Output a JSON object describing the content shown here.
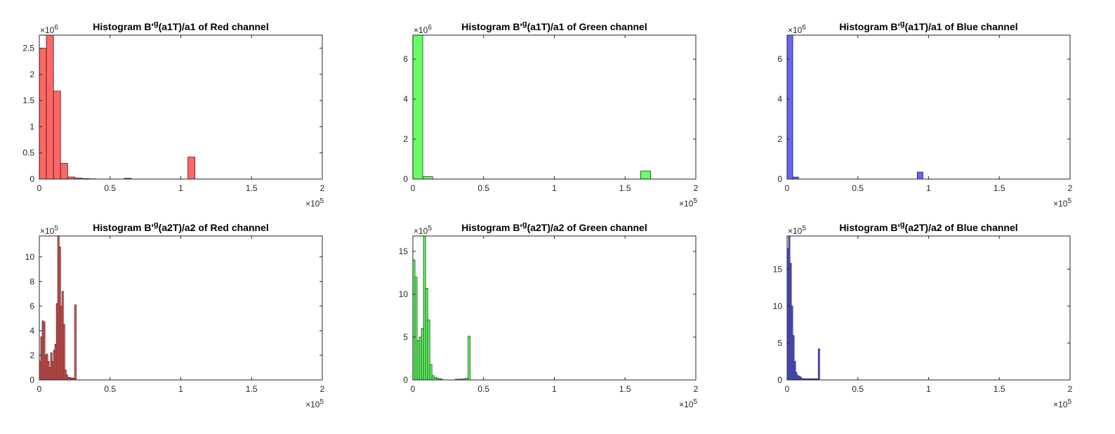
{
  "figure": {
    "background": "#ffffff"
  },
  "chart_data": [
    {
      "type": "bar",
      "title": "Histogram B'g(a1T)/a1 of Red channel",
      "title_parts": {
        "pre": "Histogram B'",
        "sup": "g",
        "post": "(a1T)/a1 of Red channel"
      },
      "color": "#ff6666",
      "xlim": [
        0,
        200000
      ],
      "ylim": [
        0,
        2750000
      ],
      "x_tick_labels": [
        "0",
        "0.5",
        "1",
        "1.5",
        "2"
      ],
      "x_ticks": [
        0,
        50000,
        100000,
        150000,
        200000
      ],
      "x_multiplier": "10^5",
      "y_tick_labels": [
        "0",
        "0.5",
        "1",
        "1.5",
        "2",
        "2.5"
      ],
      "y_ticks": [
        0,
        500000,
        1000000,
        1500000,
        2000000,
        2500000
      ],
      "y_multiplier": "10^6",
      "bin_width": 5000,
      "bins": [
        {
          "x": 0,
          "y": 2500000
        },
        {
          "x": 5000,
          "y": 2780000
        },
        {
          "x": 10000,
          "y": 1680000
        },
        {
          "x": 15000,
          "y": 300000
        },
        {
          "x": 20000,
          "y": 40000
        },
        {
          "x": 25000,
          "y": 20000
        },
        {
          "x": 30000,
          "y": 10000
        },
        {
          "x": 35000,
          "y": 5000
        },
        {
          "x": 60000,
          "y": 15000
        },
        {
          "x": 105000,
          "y": 420000
        }
      ]
    },
    {
      "type": "bar",
      "title": "Histogram B'g(a1T)/a1 of Green channel",
      "title_parts": {
        "pre": "Histogram B'",
        "sup": "g",
        "post": "(a1T)/a1 of Green channel"
      },
      "color": "#66ff66",
      "xlim": [
        0,
        200000
      ],
      "ylim": [
        0,
        7200000
      ],
      "x_tick_labels": [
        "0",
        "0.5",
        "1",
        "1.5",
        "2"
      ],
      "x_ticks": [
        0,
        50000,
        100000,
        150000,
        200000
      ],
      "x_multiplier": "10^5",
      "y_tick_labels": [
        "0",
        "2",
        "4",
        "6"
      ],
      "y_ticks": [
        0,
        2000000,
        4000000,
        6000000
      ],
      "y_multiplier": "10^6",
      "bin_width": 7000,
      "bins": [
        {
          "x": 0,
          "y": 7200000
        },
        {
          "x": 7000,
          "y": 120000
        },
        {
          "x": 161000,
          "y": 400000
        }
      ]
    },
    {
      "type": "bar",
      "title": "Histogram B'g(a1T)/a1 of Blue channel",
      "title_parts": {
        "pre": "Histogram B'",
        "sup": "g",
        "post": "(a1T)/a1 of Blue channel"
      },
      "color": "#6666ff",
      "xlim": [
        0,
        200000
      ],
      "ylim": [
        0,
        7200000
      ],
      "x_tick_labels": [
        "0",
        "0.5",
        "1",
        "1.5",
        "2"
      ],
      "x_ticks": [
        0,
        50000,
        100000,
        150000,
        200000
      ],
      "x_multiplier": "10^5",
      "y_tick_labels": [
        "0",
        "2",
        "4",
        "6"
      ],
      "y_ticks": [
        0,
        2000000,
        4000000,
        6000000
      ],
      "y_multiplier": "10^6",
      "bin_width": 4000,
      "bins": [
        {
          "x": 0,
          "y": 7200000
        },
        {
          "x": 4000,
          "y": 100000
        },
        {
          "x": 92000,
          "y": 350000
        }
      ]
    },
    {
      "type": "bar",
      "title": "Histogram B'g(a2T)/a2 of Red channel",
      "title_parts": {
        "pre": "Histogram B'",
        "sup": "g",
        "post": "(a2T)/a2 of Red channel"
      },
      "color": "#ff6666",
      "xlim": [
        0,
        200000
      ],
      "ylim": [
        0,
        1170000
      ],
      "x_tick_labels": [
        "0",
        "0.5",
        "1",
        "1.5",
        "2"
      ],
      "x_ticks": [
        0,
        50000,
        100000,
        150000,
        200000
      ],
      "x_multiplier": "10^5",
      "y_tick_labels": [
        "0",
        "2",
        "4",
        "6",
        "8",
        "10"
      ],
      "y_ticks": [
        0,
        200000,
        400000,
        600000,
        800000,
        1000000
      ],
      "y_multiplier": "10^5",
      "bin_width": 1000,
      "bins": [
        {
          "x": 0,
          "y": 150000
        },
        {
          "x": 1000,
          "y": 350000
        },
        {
          "x": 2000,
          "y": 480000
        },
        {
          "x": 3000,
          "y": 470000
        },
        {
          "x": 4000,
          "y": 200000
        },
        {
          "x": 5000,
          "y": 210000
        },
        {
          "x": 6000,
          "y": 150000
        },
        {
          "x": 7000,
          "y": 100000
        },
        {
          "x": 8000,
          "y": 220000
        },
        {
          "x": 9000,
          "y": 150000
        },
        {
          "x": 10000,
          "y": 240000
        },
        {
          "x": 11000,
          "y": 290000
        },
        {
          "x": 12000,
          "y": 620000
        },
        {
          "x": 13000,
          "y": 1180000
        },
        {
          "x": 14000,
          "y": 1080000
        },
        {
          "x": 15000,
          "y": 600000
        },
        {
          "x": 16000,
          "y": 720000
        },
        {
          "x": 17000,
          "y": 450000
        },
        {
          "x": 18000,
          "y": 80000
        },
        {
          "x": 19000,
          "y": 40000
        },
        {
          "x": 20000,
          "y": 20000
        },
        {
          "x": 21000,
          "y": 20000
        },
        {
          "x": 22000,
          "y": 15000
        },
        {
          "x": 23000,
          "y": 15000
        },
        {
          "x": 24000,
          "y": 15000
        },
        {
          "x": 25000,
          "y": 610000
        }
      ]
    },
    {
      "type": "bar",
      "title": "Histogram B'g(a2T)/a2 of Green channel",
      "title_parts": {
        "pre": "Histogram B'",
        "sup": "g",
        "post": "(a2T)/a2 of Green channel"
      },
      "color": "#66ff66",
      "xlim": [
        0,
        200000
      ],
      "ylim": [
        0,
        1680000
      ],
      "x_tick_labels": [
        "0",
        "0.5",
        "1",
        "1.5",
        "2"
      ],
      "x_ticks": [
        0,
        50000,
        100000,
        150000,
        200000
      ],
      "x_multiplier": "10^5",
      "y_tick_labels": [
        "0",
        "5",
        "10",
        "15"
      ],
      "y_ticks": [
        0,
        500000,
        1000000,
        1500000
      ],
      "y_multiplier": "10^5",
      "bin_width": 1500,
      "bins": [
        {
          "x": 0,
          "y": 1400000
        },
        {
          "x": 1500,
          "y": 1200000
        },
        {
          "x": 3000,
          "y": 460000
        },
        {
          "x": 4500,
          "y": 500000
        },
        {
          "x": 6000,
          "y": 600000
        },
        {
          "x": 7500,
          "y": 1680000
        },
        {
          "x": 9000,
          "y": 1070000
        },
        {
          "x": 10500,
          "y": 700000
        },
        {
          "x": 12000,
          "y": 180000
        },
        {
          "x": 13500,
          "y": 50000
        },
        {
          "x": 15000,
          "y": 30000
        },
        {
          "x": 16500,
          "y": 20000
        },
        {
          "x": 18000,
          "y": 15000
        },
        {
          "x": 19500,
          "y": 10000
        },
        {
          "x": 30000,
          "y": 8000
        },
        {
          "x": 31500,
          "y": 8000
        },
        {
          "x": 33000,
          "y": 10000
        },
        {
          "x": 34500,
          "y": 10000
        },
        {
          "x": 36000,
          "y": 15000
        },
        {
          "x": 37500,
          "y": 20000
        },
        {
          "x": 39000,
          "y": 510000
        }
      ]
    },
    {
      "type": "bar",
      "title": "Histogram B'g(a2T)/a2 of Blue channel",
      "title_parts": {
        "pre": "Histogram B'",
        "sup": "g",
        "post": "(a2T)/a2 of Blue channel"
      },
      "color": "#6666ff",
      "xlim": [
        0,
        200000
      ],
      "ylim": [
        0,
        1950000
      ],
      "x_tick_labels": [
        "0",
        "0.5",
        "1",
        "1.5",
        "2"
      ],
      "x_ticks": [
        0,
        50000,
        100000,
        150000,
        200000
      ],
      "x_multiplier": "10^5",
      "y_tick_labels": [
        "0",
        "5",
        "10",
        "15"
      ],
      "y_ticks": [
        0,
        500000,
        1000000,
        1500000
      ],
      "y_multiplier": "10^5",
      "bin_width": 1000,
      "bins": [
        {
          "x": 0,
          "y": 1780000
        },
        {
          "x": 1000,
          "y": 1950000
        },
        {
          "x": 2000,
          "y": 1580000
        },
        {
          "x": 3000,
          "y": 1000000
        },
        {
          "x": 4000,
          "y": 600000
        },
        {
          "x": 5000,
          "y": 250000
        },
        {
          "x": 6000,
          "y": 100000
        },
        {
          "x": 7000,
          "y": 60000
        },
        {
          "x": 8000,
          "y": 50000
        },
        {
          "x": 9000,
          "y": 40000
        },
        {
          "x": 10000,
          "y": 20000
        },
        {
          "x": 11000,
          "y": 15000
        },
        {
          "x": 12000,
          "y": 15000
        },
        {
          "x": 13000,
          "y": 15000
        },
        {
          "x": 14000,
          "y": 15000
        },
        {
          "x": 15000,
          "y": 15000
        },
        {
          "x": 16000,
          "y": 15000
        },
        {
          "x": 17000,
          "y": 15000
        },
        {
          "x": 18000,
          "y": 15000
        },
        {
          "x": 19000,
          "y": 15000
        },
        {
          "x": 20000,
          "y": 15000
        },
        {
          "x": 21000,
          "y": 15000
        },
        {
          "x": 22000,
          "y": 420000
        }
      ]
    }
  ]
}
